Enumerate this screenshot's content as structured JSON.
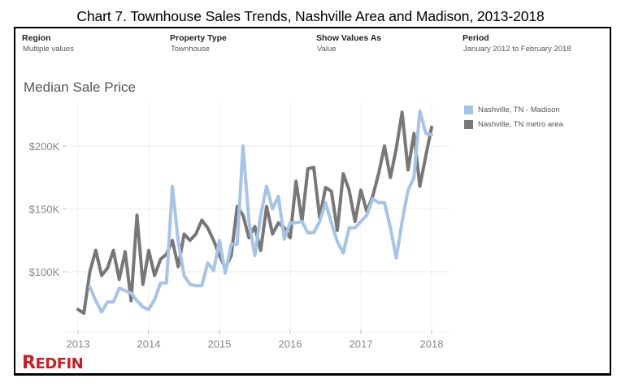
{
  "page": {
    "title": "Chart 7. Townhouse Sales Trends, Nashville Area and Madison, 2013-2018"
  },
  "filters": [
    {
      "label": "Region",
      "value": "Multiple values"
    },
    {
      "label": "Property Type",
      "value": "Townhouse"
    },
    {
      "label": "Show Values As",
      "value": "Value"
    },
    {
      "label": "Period",
      "value": "January 2012 to February 2018"
    }
  ],
  "logo": {
    "first": "R",
    "rest": "EDFIN"
  },
  "colors": {
    "madison": "#a7c3e6",
    "metro": "#777777",
    "brand": "#c82027"
  },
  "chart_data": {
    "type": "line",
    "title": "Median Sale Price",
    "xlabel": "",
    "ylabel": "",
    "x_start": "2013-01",
    "x_step": "month",
    "xlim": [
      2012.83,
      2018.25
    ],
    "ylim": [
      52,
      236
    ],
    "x_ticks": [
      2013,
      2014,
      2015,
      2016,
      2017,
      2018
    ],
    "x_tick_labels": [
      "2013",
      "2014",
      "2015",
      "2016",
      "2017",
      "2018"
    ],
    "y_ticks": [
      100,
      150,
      200
    ],
    "y_tick_labels": [
      "$100K",
      "$150K",
      "$200K"
    ],
    "grid": true,
    "legend_position": "top-right",
    "series": [
      {
        "name": "Nashville, TN - Madison",
        "color": "#a7c3e6",
        "values": [
          null,
          null,
          88,
          77,
          68,
          76,
          76,
          87,
          85,
          83,
          77,
          72,
          70,
          78,
          91,
          91,
          168,
          124,
          97,
          90,
          89,
          89,
          107,
          101,
          125,
          99,
          122,
          122,
          200,
          140,
          113,
          145,
          168,
          150,
          160,
          126,
          139,
          139,
          140,
          131,
          131,
          140,
          155,
          139,
          124,
          115,
          135,
          135,
          140,
          145,
          158,
          155,
          155,
          135,
          111,
          140,
          165,
          175,
          228,
          210,
          209
        ]
      },
      {
        "name": "Nashville, TN metro area",
        "color": "#777777",
        "values": [
          70,
          67,
          100,
          117,
          97,
          103,
          117,
          94,
          116,
          77,
          145,
          90,
          117,
          97,
          110,
          114,
          125,
          104,
          130,
          125,
          130,
          141,
          135,
          125,
          113,
          103,
          113,
          152,
          145,
          127,
          136,
          117,
          152,
          130,
          139,
          135,
          127,
          172,
          140,
          182,
          183,
          143,
          167,
          164,
          133,
          178,
          165,
          140,
          165,
          148,
          160,
          178,
          200,
          175,
          198,
          227,
          181,
          210,
          168,
          192,
          215
        ]
      }
    ]
  }
}
